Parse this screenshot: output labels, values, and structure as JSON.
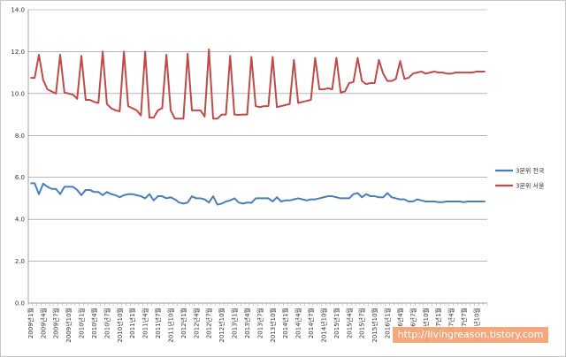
{
  "chart_data": {
    "type": "line",
    "title": "",
    "xlabel": "",
    "ylabel": "",
    "ylim": [
      0,
      14
    ],
    "yticks": [
      "0.0",
      "2.0",
      "4.0",
      "6.0",
      "8.0",
      "10.0",
      "12.0",
      "14.0"
    ],
    "grid": "horizontal",
    "legend": "right",
    "x_start": "2009-01",
    "x_end": "2017-12",
    "x_tick_labels": [
      "2009년1월",
      "2009년4월",
      "2009년7월",
      "2009년10월",
      "2010년1월",
      "2010년4월",
      "2010년7월",
      "2010년10월",
      "2011년1월",
      "2011년4월",
      "2011년7월",
      "2011년10월",
      "2012년1월",
      "2012년4월",
      "2012년7월",
      "2012년10월",
      "2013년1월",
      "2013년4월",
      "2013년7월",
      "2013년10월",
      "2014년1월",
      "2014년4월",
      "2014년7월",
      "2014년10월",
      "2015년1월",
      "2015년4월",
      "2015년7월",
      "2015년10월",
      "2016년1월",
      "2016년4월",
      "2016년7월",
      "2016년10월",
      "2017년1월",
      "2017년4월",
      "2017년7월",
      "2017년10월"
    ],
    "series": [
      {
        "name": "3분위 전국",
        "color": "#4a7ebb",
        "values": [
          5.72,
          5.72,
          5.2,
          5.7,
          5.55,
          5.45,
          5.45,
          5.2,
          5.55,
          5.55,
          5.55,
          5.4,
          5.15,
          5.4,
          5.4,
          5.3,
          5.3,
          5.15,
          5.3,
          5.2,
          5.15,
          5.05,
          5.15,
          5.2,
          5.2,
          5.15,
          5.1,
          5.0,
          5.2,
          4.9,
          5.1,
          5.1,
          5.0,
          5.05,
          4.95,
          4.8,
          4.75,
          4.8,
          5.1,
          5.0,
          5.0,
          4.95,
          4.8,
          5.1,
          4.7,
          4.75,
          4.85,
          4.9,
          5.0,
          4.8,
          4.75,
          4.8,
          4.78,
          5.0,
          5.0,
          5.0,
          5.0,
          4.85,
          5.05,
          4.85,
          4.9,
          4.9,
          4.95,
          5.0,
          4.95,
          4.9,
          4.95,
          4.95,
          5.0,
          5.05,
          5.1,
          5.1,
          5.05,
          5.0,
          5.0,
          5.0,
          5.2,
          5.25,
          5.05,
          5.2,
          5.1,
          5.1,
          5.05,
          5.05,
          5.25,
          5.05,
          5.0,
          4.95,
          4.95,
          4.85,
          4.85,
          4.95,
          4.9,
          4.85,
          4.85,
          4.85,
          4.82,
          4.82,
          4.85,
          4.85,
          4.85,
          4.85,
          4.82,
          4.85,
          4.85,
          4.85,
          4.85,
          4.85
        ]
      },
      {
        "name": "3분위 서울",
        "color": "#be4b48",
        "values": [
          10.75,
          10.75,
          11.85,
          10.65,
          10.2,
          10.1,
          10.0,
          11.85,
          10.05,
          10.0,
          9.95,
          9.75,
          11.8,
          9.7,
          9.7,
          9.6,
          9.55,
          12.0,
          9.5,
          9.3,
          9.2,
          9.15,
          12.0,
          9.4,
          9.3,
          9.2,
          8.95,
          12.0,
          8.85,
          8.85,
          9.2,
          9.3,
          11.85,
          9.2,
          8.8,
          8.8,
          8.8,
          11.9,
          9.2,
          9.2,
          9.2,
          8.9,
          12.1,
          8.8,
          8.8,
          9.0,
          9.0,
          11.8,
          9.0,
          8.98,
          9.0,
          9.0,
          11.75,
          9.4,
          9.35,
          9.4,
          9.4,
          11.75,
          9.35,
          9.4,
          9.45,
          9.5,
          11.6,
          9.55,
          9.6,
          9.65,
          9.7,
          11.7,
          10.2,
          10.2,
          10.25,
          10.2,
          11.7,
          10.05,
          10.1,
          10.5,
          10.55,
          11.7,
          10.6,
          10.45,
          10.5,
          10.5,
          11.6,
          10.95,
          10.6,
          10.6,
          10.7,
          11.55,
          10.7,
          10.75,
          10.95,
          11.0,
          11.05,
          10.95,
          11.0,
          11.05,
          11.0,
          11.0,
          10.95,
          10.95,
          11.0,
          11.0,
          11.0,
          11.0,
          11.0,
          11.05,
          11.05,
          11.05
        ]
      }
    ]
  },
  "watermark": "http://livingreason.tistory.com"
}
